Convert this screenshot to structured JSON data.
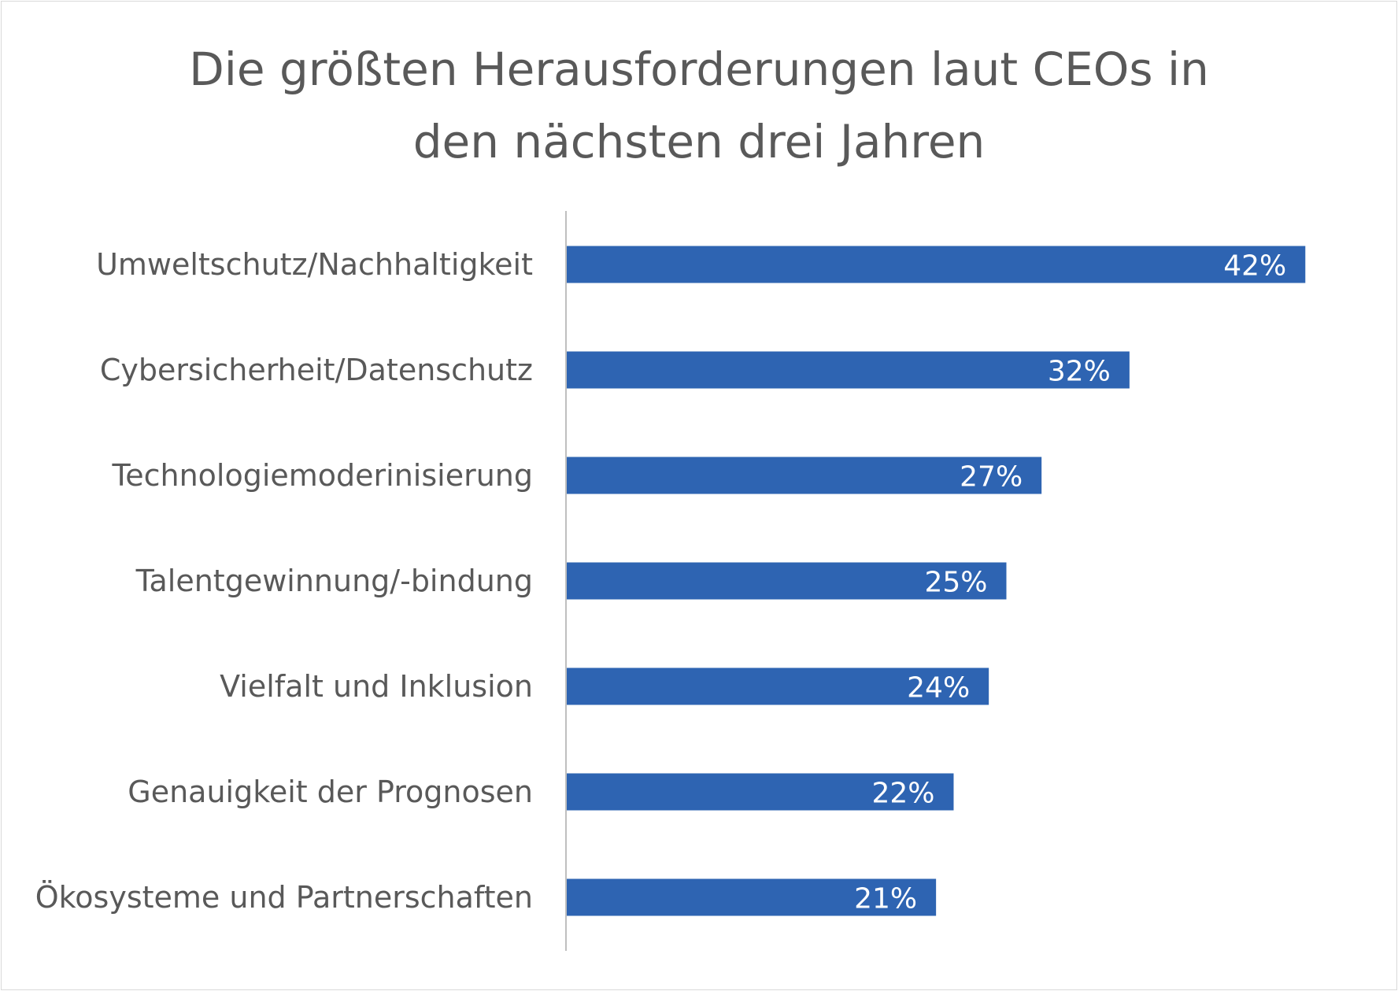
{
  "chart_data": {
    "type": "bar",
    "orientation": "horizontal",
    "title_lines": [
      "Die größten Herausforderungen laut CEOs in",
      "den nächsten drei Jahren"
    ],
    "categories": [
      "Umweltschutz/Nachhaltigkeit",
      "Cybersicherheit/Datenschutz",
      "Technologiemoderinisierung",
      "Talentgewinnung/-bindung",
      "Vielfalt und Inklusion",
      "Genauigkeit der Prognosen",
      "Ökosysteme und Partnerschaften"
    ],
    "values": [
      42,
      32,
      27,
      25,
      24,
      22,
      21
    ],
    "value_labels": [
      "42%",
      "32%",
      "27%",
      "25%",
      "24%",
      "22%",
      "21%"
    ],
    "unit": "%",
    "xlim": [
      0,
      46
    ],
    "grid": false,
    "legend": "none",
    "bar_color": "#2e64b2",
    "axis_color": "#bfbfbf",
    "label_color": "#595959"
  }
}
